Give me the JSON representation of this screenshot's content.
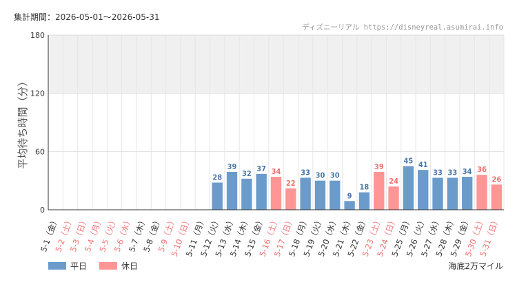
{
  "header": {
    "period_label": "集計期間：2026-05-01～2026-05-31",
    "credit": "ディズニーリアル https://disneyreal.asumirai.info"
  },
  "footer": {
    "area": "海底2万マイル"
  },
  "colors": {
    "weekday": "#6b9bcb",
    "holiday": "#ff9595",
    "weekday_text": "#4a78a8",
    "holiday_text": "#f07070",
    "band": "#f0f0f0",
    "grid": "#e6e6e6"
  },
  "chart_data": {
    "type": "bar",
    "ylabel": "平均待ち時間（分）",
    "ylim": [
      0,
      180
    ],
    "yticks": [
      0,
      60,
      120,
      180
    ],
    "shaded_band": [
      120,
      180
    ],
    "legend": [
      {
        "key": "weekday",
        "label": "平日"
      },
      {
        "key": "holiday",
        "label": "休日"
      }
    ],
    "categories": [
      "5-1（金）",
      "5-2（土）",
      "5-3（日）",
      "5-4（月）",
      "5-5（火）",
      "5-6（水）",
      "5-7（木）",
      "5-8（金）",
      "5-9（土）",
      "5-10（日）",
      "5-11（月）",
      "5-12（火）",
      "5-13（水）",
      "5-14（木）",
      "5-15（金）",
      "5-16（土）",
      "5-17（日）",
      "5-18（月）",
      "5-19（火）",
      "5-20（水）",
      "5-21（木）",
      "5-22（金）",
      "5-23（土）",
      "5-24（日）",
      "5-25（月）",
      "5-26（火）",
      "5-27（水）",
      "5-28（木）",
      "5-29（金）",
      "5-30（土）",
      "5-31（日）"
    ],
    "holiday": [
      false,
      true,
      true,
      true,
      true,
      true,
      false,
      false,
      true,
      true,
      false,
      false,
      false,
      false,
      false,
      true,
      true,
      false,
      false,
      false,
      false,
      false,
      true,
      true,
      false,
      false,
      false,
      false,
      false,
      true,
      true
    ],
    "values": [
      null,
      null,
      null,
      null,
      null,
      null,
      null,
      null,
      null,
      null,
      null,
      28,
      39,
      32,
      37,
      34,
      22,
      33,
      30,
      30,
      9,
      18,
      39,
      24,
      45,
      41,
      33,
      33,
      34,
      36,
      26
    ]
  }
}
